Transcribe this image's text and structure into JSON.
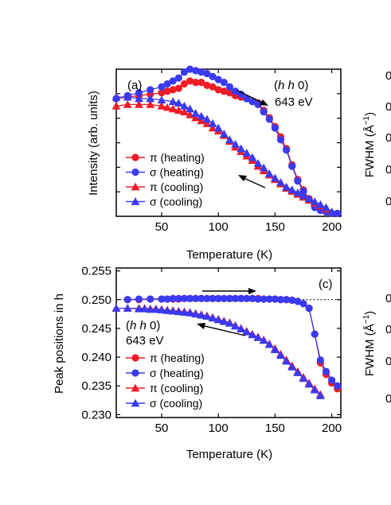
{
  "colors": {
    "red": "#ee1c25",
    "blue": "#3a3af0",
    "axis": "#000000"
  },
  "chart_data": [
    {
      "panel": "(a)",
      "type": "line",
      "xlabel": "Temperature (K)",
      "ylabel": "Intensity (arb. units)",
      "xlim": [
        10,
        208
      ],
      "ylim": [
        0,
        1
      ],
      "x_ticks": [
        "50",
        "100",
        "150",
        "200"
      ],
      "annotation": {
        "line1_italic": "h h",
        "line1_tail": " 0)",
        "line1_open": "(",
        "line2": "643 eV"
      },
      "legend": [
        "π (heating)",
        "σ (heating)",
        "π (cooling)",
        "σ (cooling)"
      ],
      "legend_position": "bottom-left",
      "series": [
        {
          "name": "π (heating)",
          "marker": "circle",
          "color": "red",
          "x": [
            10,
            20,
            30,
            40,
            50,
            55,
            60,
            65,
            70,
            75,
            80,
            85,
            90,
            95,
            100,
            105,
            110,
            115,
            120,
            125,
            130,
            135,
            140,
            145,
            150,
            155,
            160,
            165,
            170,
            175,
            180,
            185,
            190,
            195,
            200,
            205
          ],
          "y": [
            0.8,
            0.81,
            0.82,
            0.83,
            0.84,
            0.85,
            0.86,
            0.87,
            0.9,
            0.92,
            0.91,
            0.91,
            0.89,
            0.88,
            0.86,
            0.85,
            0.84,
            0.82,
            0.81,
            0.8,
            0.78,
            0.77,
            0.72,
            0.67,
            0.61,
            0.54,
            0.46,
            0.35,
            0.25,
            0.18,
            0.12,
            0.07,
            0.05,
            0.03,
            0.02,
            0.02
          ]
        },
        {
          "name": "σ (heating)",
          "marker": "circle",
          "color": "blue",
          "x": [
            10,
            20,
            30,
            40,
            50,
            55,
            60,
            65,
            70,
            75,
            80,
            85,
            90,
            95,
            100,
            105,
            110,
            115,
            120,
            125,
            130,
            135,
            140,
            145,
            150,
            155,
            160,
            165,
            170,
            175,
            180,
            185,
            190,
            195,
            200,
            205
          ],
          "y": [
            0.8,
            0.82,
            0.84,
            0.86,
            0.88,
            0.9,
            0.92,
            0.94,
            0.98,
            1.0,
            0.99,
            0.98,
            0.97,
            0.95,
            0.93,
            0.91,
            0.88,
            0.85,
            0.83,
            0.8,
            0.78,
            0.76,
            0.71,
            0.66,
            0.6,
            0.52,
            0.45,
            0.34,
            0.24,
            0.17,
            0.11,
            0.06,
            0.04,
            0.03,
            0.02,
            0.02
          ]
        },
        {
          "name": "π (cooling)",
          "marker": "triangle",
          "color": "red",
          "x": [
            200,
            195,
            190,
            185,
            180,
            175,
            170,
            165,
            160,
            155,
            150,
            145,
            140,
            135,
            130,
            125,
            120,
            115,
            110,
            105,
            100,
            95,
            90,
            85,
            80,
            75,
            70,
            65,
            60,
            55,
            50,
            40,
            30,
            20,
            10
          ],
          "y": [
            0.03,
            0.05,
            0.07,
            0.09,
            0.11,
            0.13,
            0.15,
            0.17,
            0.19,
            0.22,
            0.25,
            0.28,
            0.31,
            0.34,
            0.38,
            0.41,
            0.44,
            0.47,
            0.51,
            0.55,
            0.58,
            0.6,
            0.63,
            0.65,
            0.67,
            0.69,
            0.71,
            0.72,
            0.73,
            0.74,
            0.75,
            0.76,
            0.76,
            0.76,
            0.75
          ]
        },
        {
          "name": "σ (cooling)",
          "marker": "triangle",
          "color": "blue",
          "x": [
            200,
            195,
            190,
            185,
            180,
            175,
            170,
            165,
            160,
            155,
            150,
            145,
            140,
            135,
            130,
            125,
            120,
            115,
            110,
            105,
            100,
            95,
            90,
            85,
            80,
            75,
            70,
            65,
            60,
            50,
            40,
            30,
            20,
            10
          ],
          "y": [
            0.03,
            0.06,
            0.08,
            0.1,
            0.12,
            0.14,
            0.16,
            0.18,
            0.2,
            0.23,
            0.26,
            0.29,
            0.33,
            0.36,
            0.4,
            0.43,
            0.46,
            0.49,
            0.52,
            0.56,
            0.6,
            0.63,
            0.66,
            0.68,
            0.7,
            0.73,
            0.75,
            0.77,
            0.78,
            0.79,
            0.8,
            0.8,
            0.81,
            0.81
          ]
        }
      ]
    },
    {
      "panel": "(c)",
      "type": "line",
      "xlabel": "Temperature (K)",
      "ylabel": "Peak positions in h",
      "xlim": [
        10,
        208
      ],
      "ylim": [
        0.2295,
        0.2555
      ],
      "y_ticks": [
        "0.230",
        "0.235",
        "0.240",
        "0.245",
        "0.250",
        "0.255"
      ],
      "x_ticks": [
        "50",
        "100",
        "150",
        "200"
      ],
      "reference_line": 0.25,
      "annotation": {
        "line1_italic": "h h",
        "line1_tail": " 0)",
        "line1_open": "(",
        "line2": "643 eV"
      },
      "legend": [
        "π (heating)",
        "σ (heating)",
        "π (cooling)",
        "σ (cooling)"
      ],
      "legend_position": "bottom-left",
      "series": [
        {
          "name": "π (heating)",
          "marker": "circle",
          "color": "red",
          "x": [
            20,
            30,
            40,
            50,
            55,
            60,
            65,
            70,
            75,
            80,
            85,
            90,
            95,
            100,
            105,
            110,
            115,
            120,
            125,
            130,
            135,
            140,
            145,
            150,
            155,
            160,
            165,
            170,
            175,
            180,
            185,
            190,
            195,
            200,
            205
          ],
          "y": [
            0.25,
            0.25,
            0.2501,
            0.2501,
            0.2501,
            0.2501,
            0.2501,
            0.2502,
            0.2502,
            0.2502,
            0.2502,
            0.2502,
            0.2502,
            0.2502,
            0.2502,
            0.2502,
            0.2502,
            0.2502,
            0.2502,
            0.2502,
            0.2502,
            0.2501,
            0.2501,
            0.2501,
            0.25,
            0.25,
            0.2499,
            0.2497,
            0.2493,
            0.2485,
            0.244,
            0.239,
            0.237,
            0.2355,
            0.2345
          ]
        },
        {
          "name": "σ (heating)",
          "marker": "circle",
          "color": "blue",
          "x": [
            20,
            30,
            40,
            50,
            55,
            60,
            65,
            70,
            75,
            80,
            85,
            90,
            95,
            100,
            105,
            110,
            115,
            120,
            125,
            130,
            135,
            140,
            145,
            150,
            155,
            160,
            165,
            170,
            175,
            180,
            185,
            190,
            195,
            200,
            205
          ],
          "y": [
            0.25,
            0.2501,
            0.2501,
            0.2501,
            0.2501,
            0.2502,
            0.2502,
            0.2502,
            0.2502,
            0.2502,
            0.2502,
            0.2502,
            0.2502,
            0.2502,
            0.2502,
            0.2502,
            0.2502,
            0.2502,
            0.2502,
            0.2502,
            0.2501,
            0.2501,
            0.2501,
            0.2501,
            0.25,
            0.25,
            0.2499,
            0.2497,
            0.2493,
            0.2485,
            0.244,
            0.2395,
            0.2375,
            0.236,
            0.235
          ]
        },
        {
          "name": "π (cooling)",
          "marker": "triangle",
          "color": "red",
          "x": [
            190,
            185,
            180,
            175,
            170,
            165,
            160,
            155,
            150,
            145,
            140,
            135,
            130,
            125,
            120,
            115,
            110,
            105,
            100,
            95,
            90,
            85,
            80,
            75,
            70,
            65,
            60,
            55,
            50,
            45,
            40,
            35,
            30,
            20,
            10
          ],
          "y": [
            0.2335,
            0.2345,
            0.2355,
            0.2365,
            0.2375,
            0.2385,
            0.2395,
            0.2405,
            0.2415,
            0.2423,
            0.243,
            0.2435,
            0.244,
            0.2445,
            0.245,
            0.2455,
            0.246,
            0.2463,
            0.2466,
            0.2469,
            0.2472,
            0.2474,
            0.2476,
            0.2478,
            0.2479,
            0.248,
            0.2481,
            0.2482,
            0.2483,
            0.2484,
            0.2484,
            0.2485,
            0.2485,
            0.2485,
            0.2485
          ]
        },
        {
          "name": "σ (cooling)",
          "marker": "triangle",
          "color": "blue",
          "x": [
            190,
            185,
            180,
            175,
            170,
            165,
            160,
            155,
            150,
            145,
            140,
            135,
            130,
            125,
            120,
            115,
            110,
            105,
            100,
            95,
            90,
            85,
            80,
            75,
            70,
            65,
            60,
            55,
            50,
            45,
            40,
            35,
            30,
            20,
            10
          ],
          "y": [
            0.2333,
            0.2343,
            0.2353,
            0.2363,
            0.2373,
            0.2383,
            0.2393,
            0.2403,
            0.2413,
            0.2422,
            0.2429,
            0.2434,
            0.2439,
            0.2444,
            0.2449,
            0.2454,
            0.2459,
            0.2462,
            0.2465,
            0.2468,
            0.2471,
            0.2473,
            0.2475,
            0.2477,
            0.2478,
            0.2479,
            0.248,
            0.2481,
            0.2482,
            0.2483,
            0.2483,
            0.2484,
            0.2484,
            0.2485,
            0.2485
          ]
        }
      ]
    }
  ],
  "edge_panels": {
    "top_right": {
      "ylabel": "FWHM (Å",
      "ylabel_sup": "−1",
      "ylabel_close": ")",
      "tick_stub": "0"
    },
    "bottom_right": {
      "ylabel": "FWHM (Å",
      "ylabel_sup": "−1",
      "ylabel_close": ")",
      "tick_stub": "0"
    }
  }
}
